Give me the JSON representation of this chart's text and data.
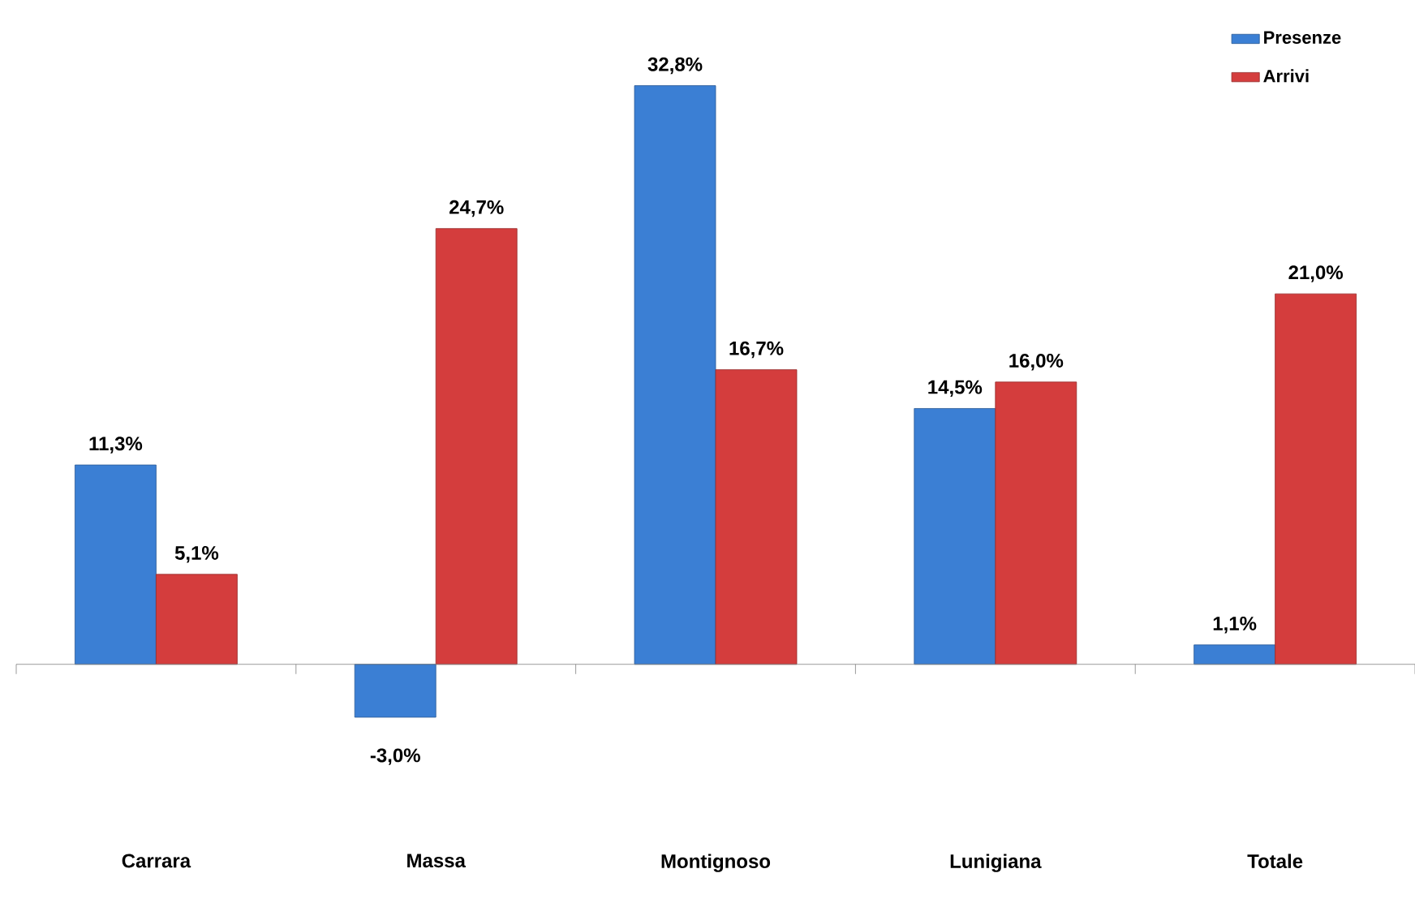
{
  "chart_data": {
    "type": "bar",
    "categories": [
      "Carrara",
      "Massa",
      "Montignoso",
      "Lunigiana",
      "Totale"
    ],
    "series": [
      {
        "name": "Presenze",
        "color": "#3b7fd4",
        "values": [
          11.3,
          -3.0,
          32.8,
          14.5,
          1.1
        ],
        "value_labels": [
          "11,3%",
          "-3,0%",
          "32,8%",
          "14,5%",
          "1,1%"
        ]
      },
      {
        "name": "Arrivi",
        "color": "#d43d3d",
        "values": [
          5.1,
          24.7,
          16.7,
          16.0,
          21.0
        ],
        "value_labels": [
          "5,1%",
          "24,7%",
          "16,7%",
          "16,0%",
          "21,0%"
        ]
      }
    ],
    "legend": "top right"
  }
}
